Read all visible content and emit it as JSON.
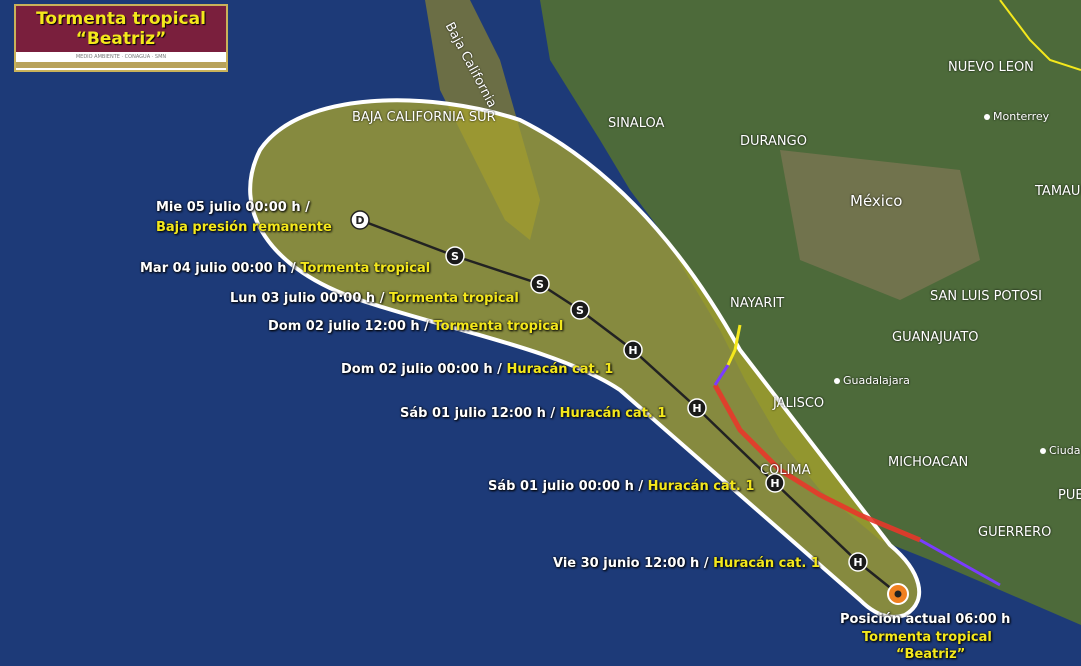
{
  "title": {
    "line1": "Tormenta tropical",
    "line2": "“Beatriz”",
    "logos": "MEDIO AMBIENTE · CONAGUA · SMN"
  },
  "colors": {
    "ocean": "#1d3a78",
    "land": "#4d6a3a",
    "cone_fill": "#a9a62c",
    "cone_border": "#ffffff",
    "track": "#222222",
    "warning_red": "#e8372a",
    "watch_purple": "#7a3cff",
    "watch_yellow": "#f4e81c",
    "label_white": "#ffffff",
    "label_yellow": "#f4e81c",
    "title_band": "#7a1f3d"
  },
  "forecast_points": [
    {
      "symbol": "D",
      "time": "Mie 05 julio 00:00 h /",
      "status": "Baja presión remanente"
    },
    {
      "symbol": "S",
      "time": "Mar 04 julio 00:00 h /",
      "status": "Tormenta tropical"
    },
    {
      "symbol": "S",
      "time": "Lun 03 julio 00:00 h /",
      "status": "Tormenta tropical"
    },
    {
      "symbol": "S",
      "time": "Dom 02 julio 12:00 h /",
      "status": "Tormenta tropical"
    },
    {
      "symbol": "H",
      "time": "Dom 02 julio 00:00 h /",
      "status": "Huracán cat. 1"
    },
    {
      "symbol": "H",
      "time": "Sáb 01 julio 12:00 h /",
      "status": "Huracán cat. 1"
    },
    {
      "symbol": "H",
      "time": "Sáb 01 julio 00:00 h /",
      "status": "Huracán cat. 1"
    },
    {
      "symbol": "H",
      "time": "Vie 30 junio 12:00 h /",
      "status": "Huracán cat. 1"
    }
  ],
  "current_position": {
    "label": "Posición actual 06:00 h",
    "status": "Tormenta tropical",
    "name": "“Beatriz”"
  },
  "places": {
    "states": [
      "BAJA CALIFORNIA SUR",
      "SINALOA",
      "DURANGO",
      "NUEVO LEON",
      "TAMAULIP",
      "NAYARIT",
      "SAN LUIS POTOSI",
      "GUANAJUATO",
      "JALISCO",
      "COLIMA",
      "MICHOACAN",
      "GUERRERO",
      "PUE",
      "Baja California"
    ],
    "country": "México",
    "cities": [
      "Monterrey",
      "Guadalajara",
      "Ciuda"
    ]
  }
}
